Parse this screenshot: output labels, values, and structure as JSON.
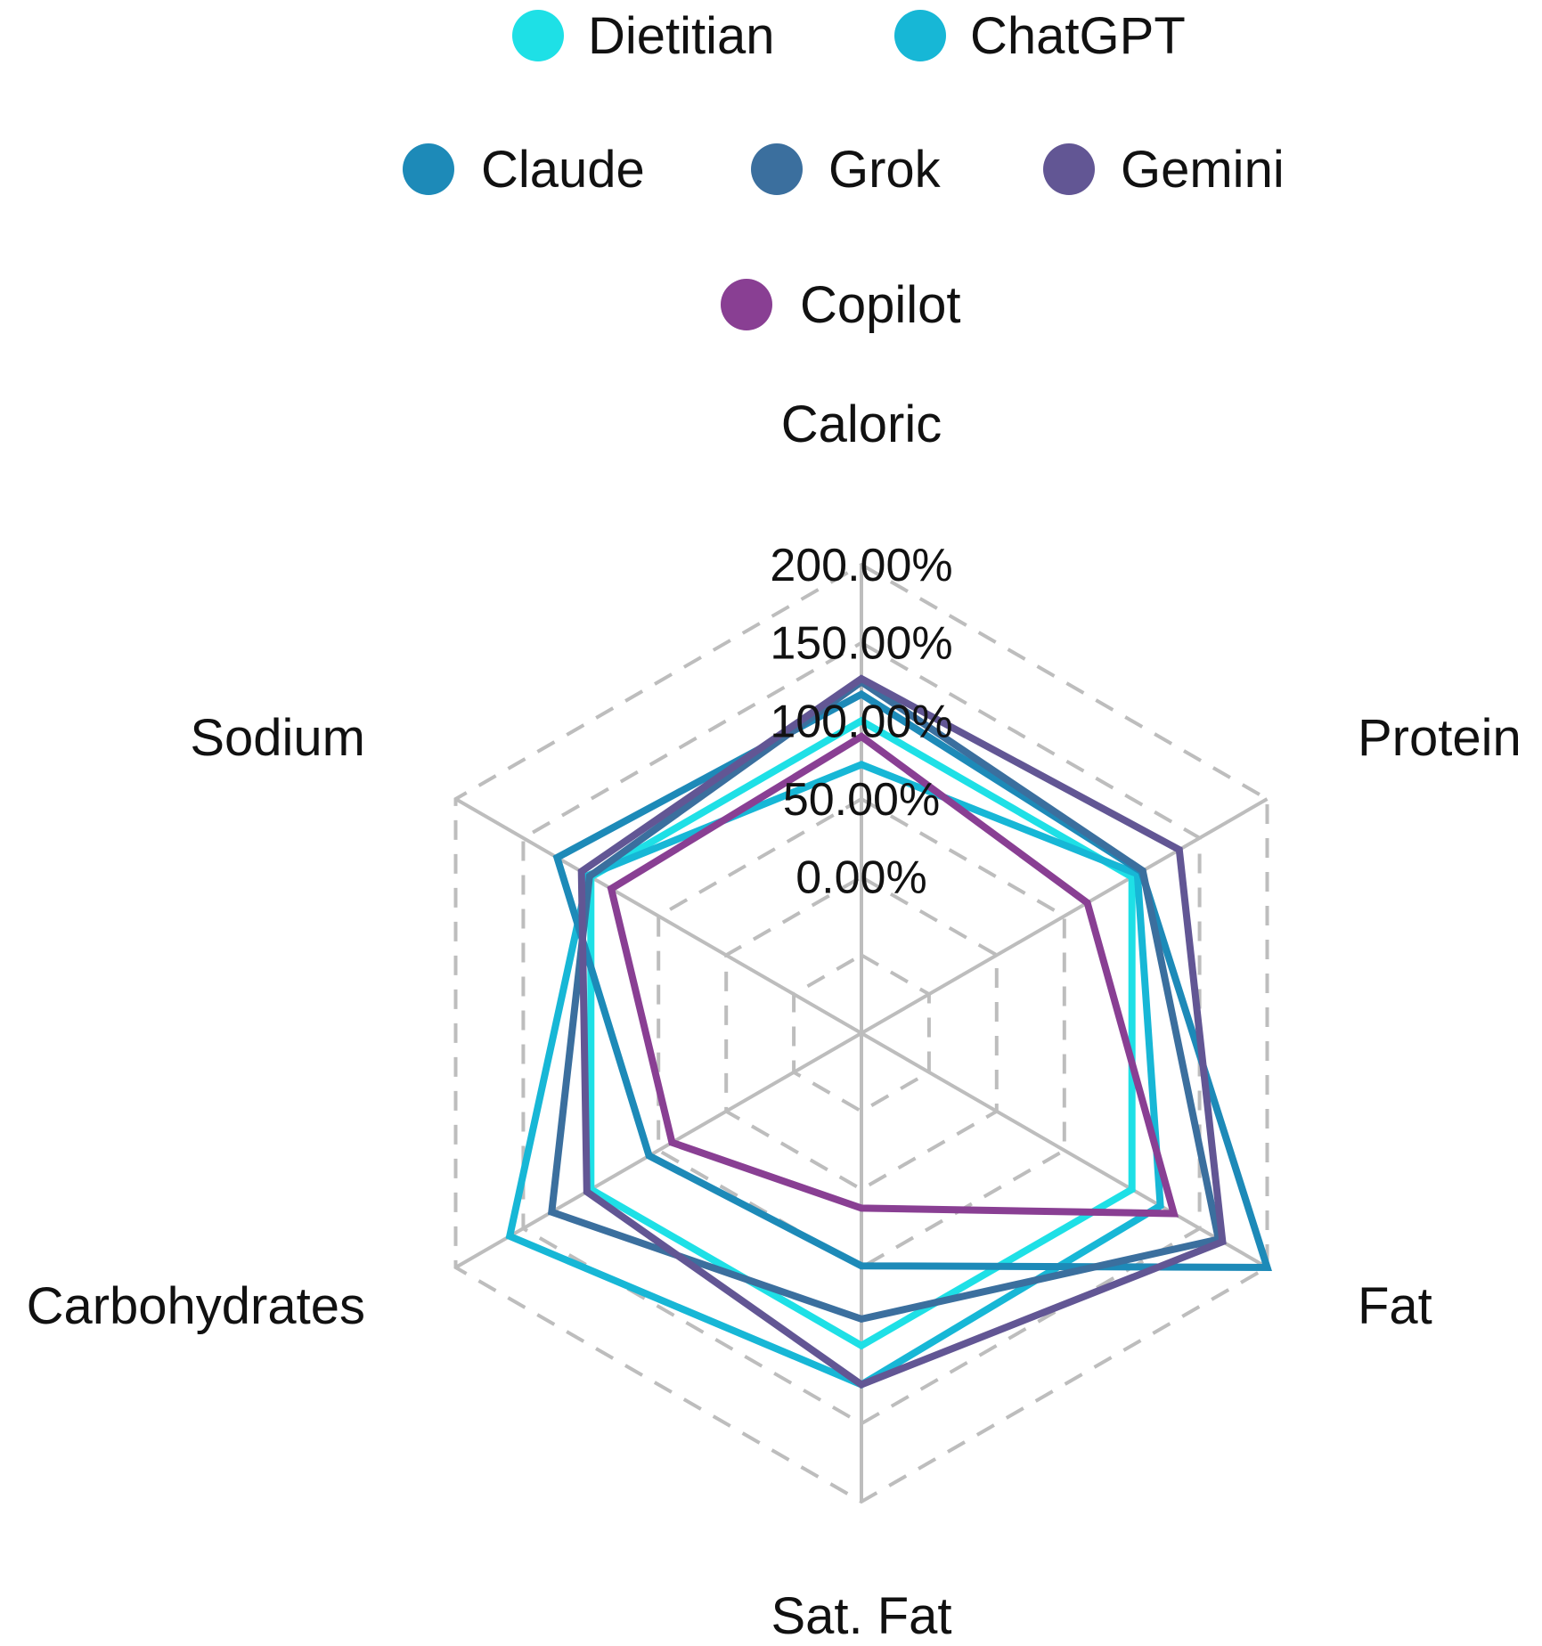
{
  "chart_data": {
    "type": "radar",
    "title": "",
    "axes": [
      "Caloric",
      "Protein",
      "Fat",
      "Sat. Fat",
      "Carbohydrates",
      "Sodium"
    ],
    "ticks": [
      "0.00%",
      "50.00%",
      "100.00%",
      "150.00%",
      "200.00%"
    ],
    "range": [
      -100,
      200
    ],
    "tick_step": 50,
    "gridlines": "dashed",
    "legend_position": "top",
    "series": [
      {
        "name": "Dietitian",
        "color": "#1ee0e6",
        "values": [
          100,
          100,
          100,
          100,
          100,
          100
        ]
      },
      {
        "name": "ChatGPT",
        "color": "#17b7d6",
        "values": [
          72,
          104,
          121,
          125,
          160,
          102
        ]
      },
      {
        "name": "Claude",
        "color": "#1d8ab8",
        "values": [
          117,
          107,
          200,
          49,
          57,
          125
        ]
      },
      {
        "name": "Grok",
        "color": "#3b6f9e",
        "values": [
          125,
          108,
          164,
          83,
          129,
          101
        ]
      },
      {
        "name": "Gemini",
        "color": "#625694",
        "values": [
          127,
          135,
          167,
          125,
          103,
          107
        ]
      },
      {
        "name": "Copilot",
        "color": "#893f93",
        "values": [
          90,
          67,
          131,
          12,
          40,
          85
        ]
      }
    ]
  }
}
